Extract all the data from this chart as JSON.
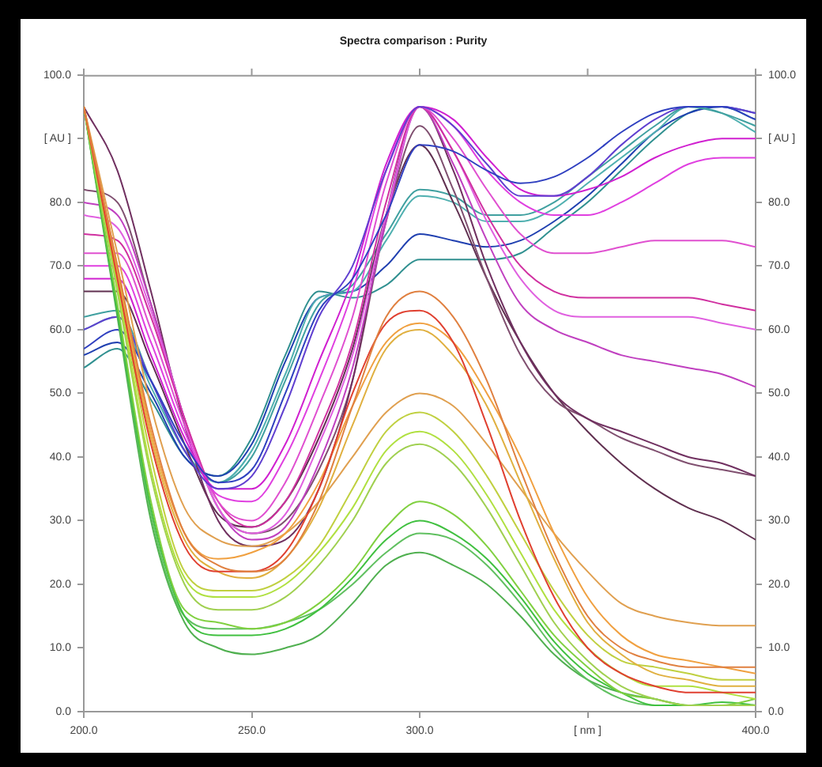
{
  "chart_data": {
    "type": "line",
    "title": "Spectra comparison : Purity",
    "marker": "none",
    "x": [
      200,
      210,
      220,
      230,
      240,
      250,
      260,
      270,
      280,
      290,
      300,
      310,
      320,
      330,
      340,
      350,
      360,
      370,
      380,
      390,
      400
    ],
    "xlim": [
      200,
      400
    ],
    "xticks": [
      {
        "value": 200,
        "label": "200.0"
      },
      {
        "value": 250,
        "label": "250.0"
      },
      {
        "value": 300,
        "label": "300.0"
      },
      {
        "value": 350,
        "label": "[ nm ]"
      },
      {
        "value": 400,
        "label": "400.0"
      }
    ],
    "ylim": [
      0,
      100
    ],
    "yticks": [
      {
        "value": 0,
        "label": "0.0"
      },
      {
        "value": 10,
        "label": "10.0"
      },
      {
        "value": 20,
        "label": "20.0"
      },
      {
        "value": 30,
        "label": "30.0"
      },
      {
        "value": 40,
        "label": "40.0"
      },
      {
        "value": 50,
        "label": "50.0"
      },
      {
        "value": 60,
        "label": "60.0"
      },
      {
        "value": 70,
        "label": "70.0"
      },
      {
        "value": 80,
        "label": "80.0"
      },
      {
        "value": 90,
        "label": "[ AU ]"
      },
      {
        "value": 100,
        "label": "100.0"
      }
    ],
    "y2lim": [
      0,
      100
    ],
    "y2ticks": [
      {
        "value": 0,
        "label": "0.0"
      },
      {
        "value": 10,
        "label": "10.0"
      },
      {
        "value": 20,
        "label": "20.0"
      },
      {
        "value": 30,
        "label": "30.0"
      },
      {
        "value": 40,
        "label": "40.0"
      },
      {
        "value": 50,
        "label": "50.0"
      },
      {
        "value": 60,
        "label": "60.0"
      },
      {
        "value": 70,
        "label": "70.0"
      },
      {
        "value": 80,
        "label": "80.0"
      },
      {
        "value": 90,
        "label": "[ AU ]"
      },
      {
        "value": 100,
        "label": "100.0"
      }
    ],
    "series": [
      {
        "color": "#e08040",
        "values": [
          95,
          70,
          45,
          28,
          23,
          22,
          24,
          33,
          48,
          62,
          66,
          62,
          52,
          38,
          25,
          15,
          10,
          8,
          7,
          7,
          7
        ]
      },
      {
        "color": "#e04030",
        "values": [
          95,
          68,
          42,
          26,
          22,
          22,
          25,
          35,
          50,
          61,
          63,
          58,
          45,
          30,
          18,
          10,
          6,
          4,
          3,
          3,
          3
        ]
      },
      {
        "color": "#f0a040",
        "values": [
          95,
          70,
          44,
          28,
          24,
          25,
          28,
          36,
          48,
          58,
          61,
          58,
          50,
          40,
          28,
          18,
          12,
          9,
          8,
          7,
          6
        ]
      },
      {
        "color": "#e0b040",
        "values": [
          95,
          69,
          43,
          27,
          22,
          21,
          24,
          32,
          45,
          57,
          60,
          56,
          48,
          36,
          24,
          14,
          9,
          6,
          5,
          4,
          4
        ]
      },
      {
        "color": "#e0a050",
        "values": [
          95,
          72,
          48,
          32,
          27,
          26,
          28,
          33,
          40,
          47,
          50,
          48,
          42,
          35,
          28,
          22,
          17,
          15,
          14,
          13.5,
          13.5
        ]
      },
      {
        "color": "#c0d040",
        "values": [
          95,
          68,
          40,
          22,
          19,
          19,
          21,
          26,
          35,
          44,
          47,
          44,
          37,
          28,
          19,
          12,
          8,
          7,
          6,
          5,
          5
        ]
      },
      {
        "color": "#b0e040",
        "values": [
          95,
          67,
          38,
          21,
          18,
          18,
          20,
          25,
          32,
          41,
          44,
          41,
          34,
          25,
          16,
          10,
          6,
          4,
          4,
          3,
          2
        ]
      },
      {
        "color": "#a0d050",
        "values": [
          95,
          66,
          37,
          20,
          16,
          16,
          18,
          23,
          30,
          39,
          42,
          39,
          32,
          23,
          14,
          8,
          4,
          2,
          1,
          1,
          1
        ]
      },
      {
        "color": "#80d040",
        "values": [
          95,
          64,
          33,
          16,
          14,
          13,
          14,
          17,
          22,
          29,
          33,
          31,
          26,
          19,
          12,
          7,
          3,
          2,
          1,
          1,
          2
        ]
      },
      {
        "color": "#40c040",
        "values": [
          95,
          63,
          32,
          15,
          12,
          12,
          13,
          16,
          21,
          27,
          30,
          28,
          24,
          18,
          11,
          6,
          3,
          1,
          1,
          1.5,
          1
        ]
      },
      {
        "color": "#60c060",
        "values": [
          95,
          63,
          31,
          15,
          13,
          13,
          14,
          16,
          20,
          25,
          28,
          27,
          23,
          17,
          10,
          5,
          2,
          1,
          1,
          1,
          1
        ]
      },
      {
        "color": "#50b050",
        "values": [
          95,
          62,
          30,
          14,
          10,
          9,
          10,
          12,
          17,
          23,
          25,
          23,
          20,
          15,
          9,
          5,
          3,
          2,
          1,
          1,
          1
        ]
      },
      {
        "color": "#3040c0",
        "values": [
          57,
          60,
          52,
          42,
          36,
          38,
          50,
          63,
          68,
          78,
          89,
          88,
          85,
          83,
          84,
          87,
          91,
          94,
          95,
          95,
          93
        ]
      },
      {
        "color": "#6040d0",
        "values": [
          60,
          62,
          52,
          41,
          35,
          37,
          48,
          62,
          70,
          85,
          95,
          92,
          86,
          81,
          81,
          84,
          89,
          93,
          95,
          95,
          94
        ]
      },
      {
        "color": "#d020d0",
        "values": [
          68,
          68,
          56,
          43,
          35,
          35,
          42,
          55,
          68,
          86,
          95,
          93,
          87,
          82,
          81,
          82,
          84,
          87,
          89,
          90,
          90
        ]
      },
      {
        "color": "#e040e0",
        "values": [
          70,
          70,
          58,
          44,
          34,
          33,
          40,
          52,
          66,
          85,
          95,
          92,
          85,
          80,
          78,
          78,
          80,
          83,
          86,
          87,
          87
        ]
      },
      {
        "color": "#e050d0",
        "values": [
          72,
          72,
          60,
          45,
          33,
          30,
          36,
          48,
          62,
          83,
          95,
          90,
          82,
          75,
          72,
          72,
          73,
          74,
          74,
          74,
          73
        ]
      },
      {
        "color": "#d030a0",
        "values": [
          75,
          74,
          62,
          46,
          33,
          29,
          33,
          44,
          58,
          80,
          95,
          88,
          78,
          70,
          66,
          65,
          65,
          65,
          65,
          64,
          63
        ]
      },
      {
        "color": "#e060e0",
        "values": [
          78,
          76,
          63,
          46,
          32,
          28,
          31,
          42,
          56,
          78,
          95,
          88,
          77,
          68,
          63,
          62,
          62,
          62,
          62,
          61,
          60
        ]
      },
      {
        "color": "#c040c0",
        "values": [
          80,
          78,
          64,
          46,
          32,
          27,
          29,
          39,
          54,
          77,
          95,
          86,
          74,
          64,
          60,
          58,
          56,
          55,
          54,
          53,
          51
        ]
      },
      {
        "color": "#703060",
        "values": [
          95,
          85,
          66,
          45,
          30,
          26,
          27,
          35,
          52,
          78,
          95,
          85,
          70,
          58,
          50,
          46,
          44,
          42,
          40,
          39,
          37
        ]
      },
      {
        "color": "#805070",
        "values": [
          82,
          80,
          64,
          46,
          32,
          28,
          30,
          38,
          52,
          77,
          92,
          82,
          68,
          56,
          49,
          46,
          43,
          41,
          39,
          38,
          37
        ]
      },
      {
        "color": "#603050",
        "values": [
          66,
          66,
          55,
          42,
          31,
          29,
          33,
          43,
          57,
          78,
          89,
          80,
          68,
          58,
          50,
          44,
          39,
          35,
          32,
          30,
          27
        ]
      },
      {
        "color": "#40a0a0",
        "values": [
          62,
          63,
          52,
          41,
          36,
          40,
          52,
          64,
          67,
          75,
          82,
          81,
          78,
          78,
          80,
          84,
          88,
          92,
          95,
          94,
          92
        ]
      },
      {
        "color": "#50b0b0",
        "values": [
          60,
          62,
          51,
          41,
          36,
          41,
          53,
          65,
          66,
          74,
          81,
          80,
          77,
          77,
          79,
          83,
          87,
          91,
          95,
          94,
          91
        ]
      },
      {
        "color": "#2040b0",
        "values": [
          56,
          58,
          50,
          40,
          37,
          42,
          55,
          65,
          66,
          70,
          75,
          74,
          73,
          74,
          77,
          81,
          86,
          91,
          94,
          95,
          94
        ]
      },
      {
        "color": "#309090",
        "values": [
          54,
          57,
          49,
          40,
          37,
          43,
          56,
          66,
          65,
          67,
          71,
          71,
          71,
          72,
          76,
          80,
          85,
          90,
          94,
          95,
          93
        ]
      }
    ]
  }
}
